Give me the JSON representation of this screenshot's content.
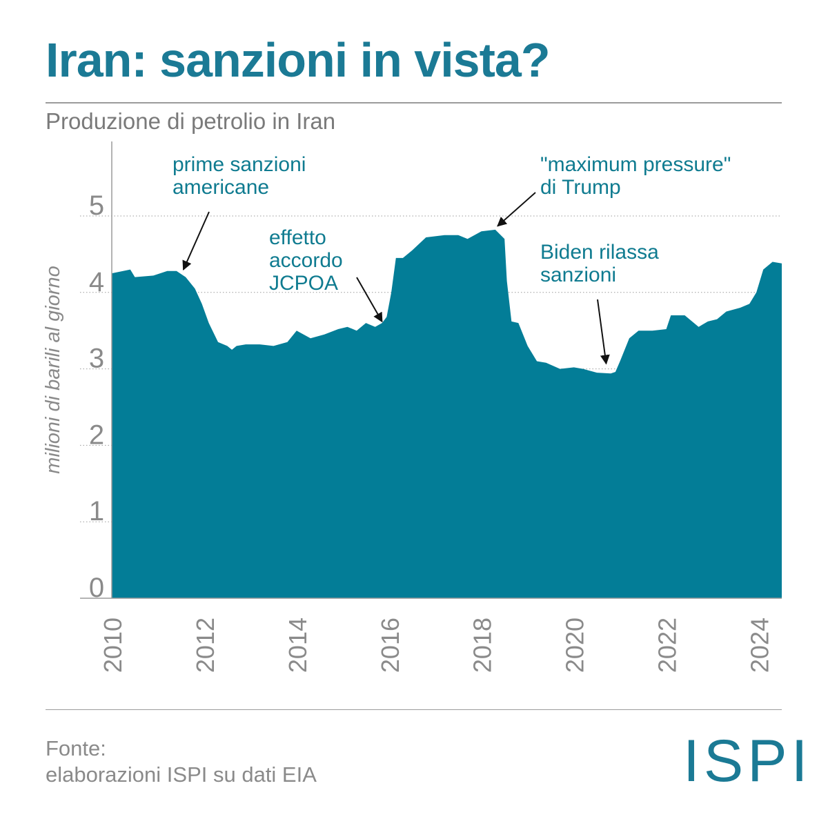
{
  "header": {
    "title": "Iran: sanzioni in vista?",
    "subtitle": "Produzione di petrolio in Iran"
  },
  "footer": {
    "source_label": "Fonte:",
    "source_text": "elaborazioni ISPI su dati EIA",
    "logo": "ISPI"
  },
  "colors": {
    "area_fill": "#037d97",
    "title": "#1b7a95",
    "annotation": "#0f7b90",
    "axis_text": "#8a8a8a"
  },
  "chart_data": {
    "type": "area",
    "title": "Produzione di petrolio in Iran",
    "xlabel": "",
    "ylabel": "milioni di barili al giorno",
    "xlim": [
      2010,
      2024.5
    ],
    "ylim": [
      0,
      5.8
    ],
    "y_ticks": [
      0,
      1,
      2,
      3,
      4,
      5
    ],
    "x_ticks": [
      "2010",
      "2012",
      "2014",
      "2016",
      "2018",
      "2020",
      "2022",
      "2024"
    ],
    "grid": "horizontal dotted",
    "series": [
      {
        "name": "Produzione di petrolio",
        "x": [
          2010.0,
          2010.4,
          2010.5,
          2010.9,
          2011.2,
          2011.4,
          2011.6,
          2011.8,
          2011.95,
          2012.1,
          2012.3,
          2012.5,
          2012.6,
          2012.7,
          2012.9,
          2013.2,
          2013.5,
          2013.8,
          2014.0,
          2014.3,
          2014.6,
          2014.9,
          2015.1,
          2015.3,
          2015.5,
          2015.7,
          2015.85,
          2015.95,
          2016.05,
          2016.15,
          2016.3,
          2016.5,
          2016.8,
          2017.2,
          2017.5,
          2017.7,
          2018.0,
          2018.3,
          2018.5,
          2018.55,
          2018.65,
          2018.8,
          2019.0,
          2019.2,
          2019.4,
          2019.7,
          2020.0,
          2020.2,
          2020.5,
          2020.8,
          2020.9,
          2021.0,
          2021.2,
          2021.4,
          2021.7,
          2022.0,
          2022.1,
          2022.3,
          2022.4,
          2022.7,
          2022.9,
          2023.1,
          2023.3,
          2023.6,
          2023.8,
          2023.95,
          2024.1,
          2024.3,
          2024.5
        ],
        "values": [
          4.25,
          4.3,
          4.2,
          4.22,
          4.28,
          4.28,
          4.2,
          4.05,
          3.85,
          3.6,
          3.35,
          3.3,
          3.25,
          3.3,
          3.32,
          3.32,
          3.3,
          3.35,
          3.5,
          3.4,
          3.45,
          3.52,
          3.55,
          3.5,
          3.6,
          3.55,
          3.6,
          3.68,
          4.0,
          4.45,
          4.45,
          4.55,
          4.72,
          4.75,
          4.75,
          4.7,
          4.8,
          4.82,
          4.7,
          4.15,
          3.62,
          3.6,
          3.3,
          3.1,
          3.08,
          3.0,
          3.02,
          3.0,
          2.95,
          2.94,
          2.96,
          3.1,
          3.4,
          3.5,
          3.5,
          3.52,
          3.7,
          3.7,
          3.7,
          3.55,
          3.62,
          3.65,
          3.75,
          3.8,
          3.85,
          4.0,
          4.3,
          4.4,
          4.38
        ]
      }
    ],
    "annotations": [
      {
        "text": [
          "prime sanzioni",
          "americane"
        ],
        "x": 2011.55,
        "y": 4.28
      },
      {
        "text": [
          "effetto",
          "accordo",
          "JCPOA"
        ],
        "x": 2015.85,
        "y": 3.6
      },
      {
        "text": [
          "\"maximum pressure\"",
          "di Trump"
        ],
        "x": 2018.35,
        "y": 4.85
      },
      {
        "text": [
          "Biden rilassa",
          "sanzioni"
        ],
        "x": 2020.7,
        "y": 3.05
      }
    ]
  }
}
